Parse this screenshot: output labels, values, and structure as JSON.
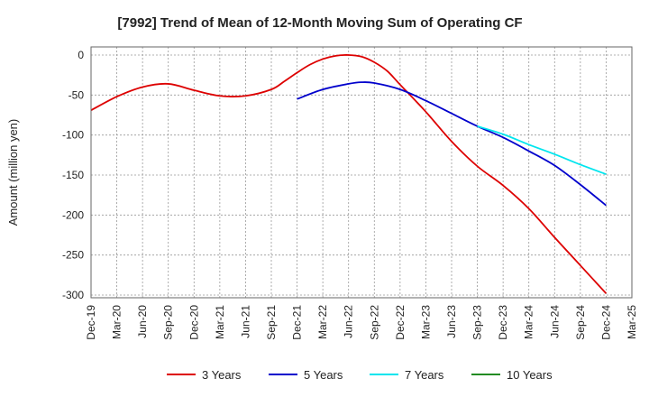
{
  "chart_data": {
    "type": "line",
    "title": "[7992]  Trend of Mean of 12-Month Moving Sum of Operating CF",
    "xlabel": "",
    "ylabel": "Amount (million yen)",
    "ylim": [
      -300,
      0
    ],
    "yticks": [
      0,
      -50,
      -100,
      -150,
      -200,
      -250,
      -300
    ],
    "grid": true,
    "legend_position": "bottom",
    "categories": [
      "Dec-19",
      "Mar-20",
      "Jun-20",
      "Sep-20",
      "Dec-20",
      "Mar-21",
      "Jun-21",
      "Sep-21",
      "Dec-21",
      "Mar-22",
      "Jun-22",
      "Sep-22",
      "Dec-22",
      "Mar-23",
      "Jun-23",
      "Sep-23",
      "Dec-23",
      "Mar-24",
      "Jun-24",
      "Sep-24",
      "Dec-24",
      "Mar-25"
    ],
    "series": [
      {
        "name": "3 Years",
        "color": "#dd0000",
        "points": [
          [
            0,
            -69
          ],
          [
            1,
            -52
          ],
          [
            2,
            -40
          ],
          [
            3,
            -36
          ],
          [
            4,
            -44
          ],
          [
            5,
            -51
          ],
          [
            6,
            -51
          ],
          [
            7,
            -43
          ],
          [
            7.5,
            -33
          ],
          [
            8,
            -22
          ],
          [
            8.5,
            -12
          ],
          [
            9,
            -5
          ],
          [
            9.5,
            -1
          ],
          [
            10,
            0
          ],
          [
            10.5,
            -2
          ],
          [
            11,
            -9
          ],
          [
            11.5,
            -20
          ],
          [
            12,
            -37
          ],
          [
            13,
            -71
          ],
          [
            14,
            -108
          ],
          [
            15,
            -139
          ],
          [
            16,
            -163
          ],
          [
            17,
            -192
          ],
          [
            18,
            -228
          ],
          [
            19,
            -263
          ],
          [
            20,
            -298
          ]
        ]
      },
      {
        "name": "5 Years",
        "color": "#0000cc",
        "points": [
          [
            8,
            -55
          ],
          [
            9,
            -43
          ],
          [
            10,
            -36
          ],
          [
            10.5,
            -34
          ],
          [
            11,
            -35
          ],
          [
            12,
            -43
          ],
          [
            13,
            -57
          ],
          [
            14,
            -73
          ],
          [
            15,
            -89
          ],
          [
            16,
            -103
          ],
          [
            17,
            -120
          ],
          [
            18,
            -138
          ],
          [
            19,
            -162
          ],
          [
            20,
            -188
          ]
        ]
      },
      {
        "name": "7 Years",
        "color": "#00e5ee",
        "points": [
          [
            15,
            -89
          ],
          [
            16,
            -99
          ],
          [
            17,
            -112
          ],
          [
            18,
            -124
          ],
          [
            19,
            -137
          ],
          [
            20,
            -149
          ]
        ]
      },
      {
        "name": "10 Years",
        "color": "#228b22",
        "points": []
      }
    ]
  }
}
